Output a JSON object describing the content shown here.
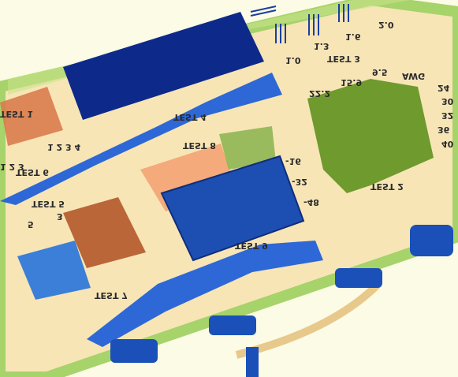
{
  "image": {
    "labels": {
      "test1": "TEST 1",
      "test2": "TEST 2",
      "test3": "TEST 3",
      "test4": "TEST 4",
      "test5": "TEST 5",
      "test6": "TEST 6",
      "test7": "TEST 7",
      "test8": "TEST 8",
      "test9": "TEST 9",
      "awg": "AWG",
      "v10": "1.0",
      "v13": "1.3",
      "v16": "1.6",
      "v20": "2.0",
      "v95": "9.5",
      "v159": "15.9",
      "v222": "22.2",
      "n24": "24",
      "n30": "30",
      "n32": "32",
      "n36": "36",
      "n40": "40",
      "m16": "-16",
      "m32": "-32",
      "m48": "-48",
      "seq": "1 2 3 4",
      "seq2": "1 2 3",
      "n3": "3",
      "n5": "5"
    }
  }
}
